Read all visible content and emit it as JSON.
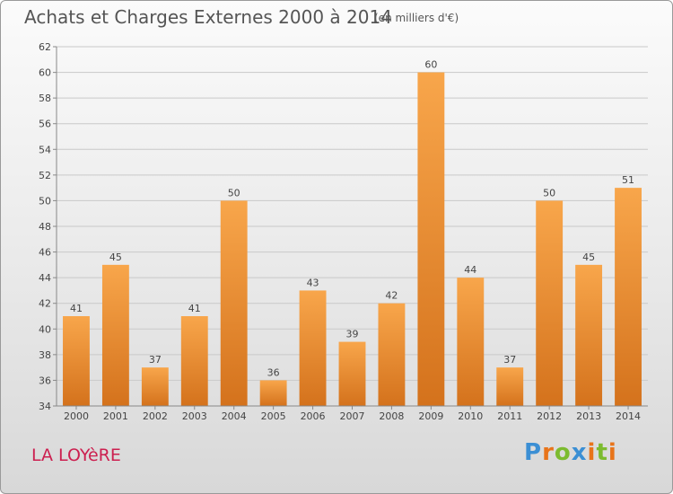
{
  "header": {
    "title": "Achats et Charges Externes 2000 à 2014",
    "subtitle": "(en milliers d'€)"
  },
  "footer": {
    "place": "LA LOYèRE",
    "logo": "Proxiti"
  },
  "colors": {
    "bar_light": "#f8a64b",
    "bar_dark": "#d4721c",
    "grid": "#c9c9c9",
    "place": "#cc1f4f",
    "logo": [
      "#3b8fd4",
      "#e8741a",
      "#7cbb2f",
      "#3b8fd4",
      "#e8741a",
      "#7cbb2f",
      "#e8741a"
    ]
  },
  "chart_data": {
    "type": "bar",
    "title": "Achats et Charges Externes 2000 à 2014",
    "subtitle": "(en milliers d'€)",
    "categories": [
      "2000",
      "2001",
      "2002",
      "2003",
      "2004",
      "2005",
      "2006",
      "2007",
      "2008",
      "2009",
      "2010",
      "2011",
      "2012",
      "2013",
      "2014"
    ],
    "values": [
      41,
      45,
      37,
      41,
      50,
      36,
      43,
      39,
      42,
      60,
      44,
      37,
      50,
      45,
      51
    ],
    "ylim": [
      34,
      62
    ],
    "yticks": [
      34,
      36,
      38,
      40,
      42,
      44,
      46,
      48,
      50,
      52,
      54,
      56,
      58,
      60,
      62
    ],
    "grid": true,
    "data_labels": true
  }
}
